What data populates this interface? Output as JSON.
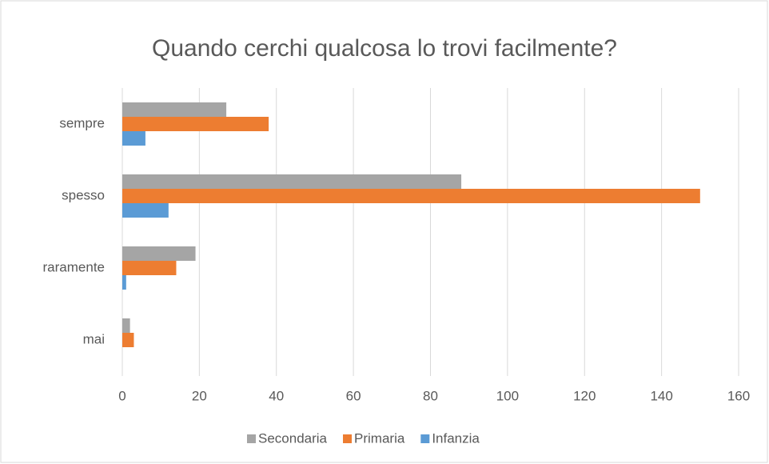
{
  "chart_data": {
    "type": "hbar",
    "title": "Quando cerchi qualcosa lo trovi facilmente?",
    "categories": [
      "sempre",
      "spesso",
      "raramente",
      "mai"
    ],
    "series": [
      {
        "name": "Secondaria",
        "color": "#a5a5a5",
        "values": [
          27,
          88,
          19,
          2
        ]
      },
      {
        "name": "Primaria",
        "color": "#ed7d31",
        "values": [
          38,
          150,
          14,
          3
        ]
      },
      {
        "name": "Infanzia",
        "color": "#5b9bd5",
        "values": [
          6,
          12,
          1,
          0
        ]
      }
    ],
    "xlim": [
      0,
      160
    ],
    "xticks": [
      0,
      20,
      40,
      60,
      80,
      100,
      120,
      140,
      160
    ],
    "grid": true,
    "legend": "bottom"
  }
}
